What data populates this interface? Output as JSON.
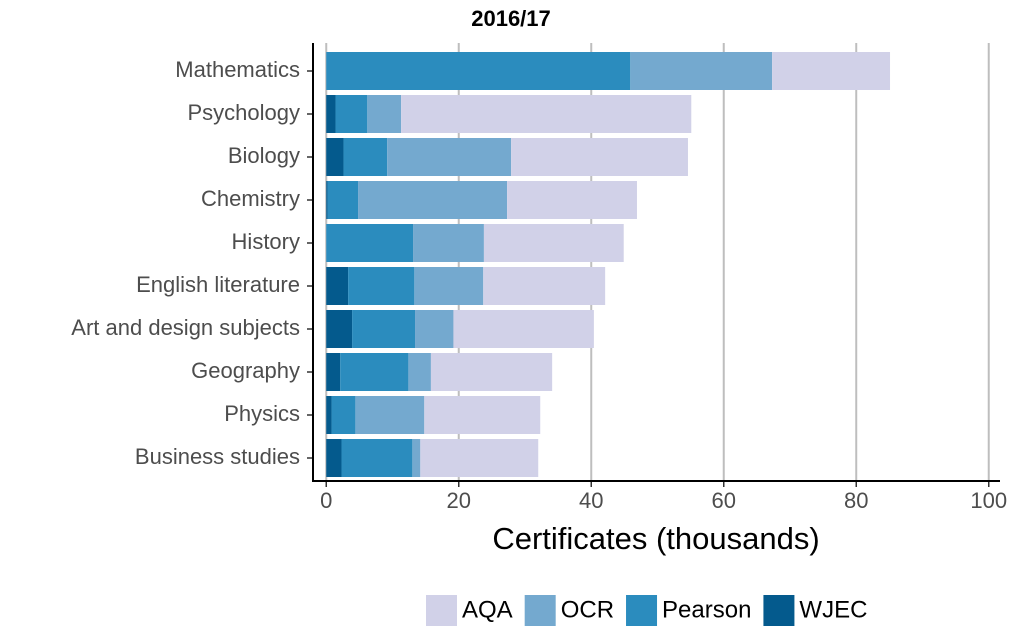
{
  "chart_data": {
    "type": "stacked_barh",
    "title": "2016/17",
    "xlabel": "Certificates (thousands)",
    "categories": [
      "Mathematics",
      "Psychology",
      "Biology",
      "Chemistry",
      "History",
      "English literature",
      "Art and design subjects",
      "Geography",
      "Physics",
      "Business studies"
    ],
    "series": [
      {
        "name": "AQA",
        "color": "#d1d1e8",
        "values": [
          17.8,
          43.8,
          26.7,
          19.6,
          21.1,
          18.4,
          21.2,
          18.3,
          17.5,
          17.8
        ]
      },
      {
        "name": "OCR",
        "color": "#74a9cf",
        "values": [
          21.4,
          5.1,
          18.7,
          22.5,
          10.7,
          10.4,
          5.8,
          3.4,
          10.4,
          1.2
        ]
      },
      {
        "name": "Pearson",
        "color": "#2b8cbe",
        "values": [
          45.9,
          4.8,
          6.6,
          4.6,
          13.1,
          10.0,
          9.5,
          10.3,
          3.6,
          10.7
        ]
      },
      {
        "name": "WJEC",
        "color": "#045a8d",
        "values": [
          0,
          1.4,
          2.6,
          0.2,
          0,
          3.3,
          3.9,
          2.1,
          0.8,
          2.3
        ]
      }
    ],
    "xlim": [
      -2,
      101.7
    ],
    "xticks": [
      0,
      20,
      40,
      60,
      80,
      100
    ],
    "grid": true,
    "legend": "bottom"
  }
}
